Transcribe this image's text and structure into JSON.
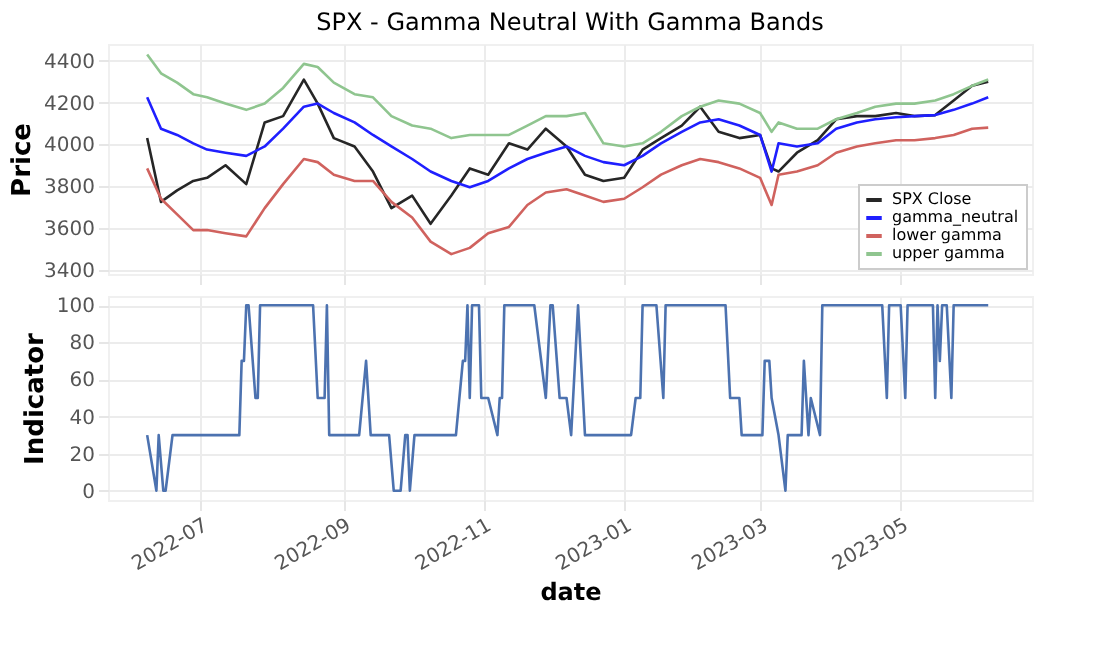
{
  "chart_data": [
    {
      "type": "line",
      "title": "SPX - Gamma Neutral With Gamma Bands",
      "ylabel": "Price",
      "x": [
        "2022-06-08",
        "2022-06-14",
        "2022-06-21",
        "2022-06-28",
        "2022-07-04",
        "2022-07-12",
        "2022-07-21",
        "2022-07-29",
        "2022-08-06",
        "2022-08-15",
        "2022-08-21",
        "2022-08-28",
        "2022-09-06",
        "2022-09-14",
        "2022-09-22",
        "2022-10-01",
        "2022-10-09",
        "2022-10-18",
        "2022-10-26",
        "2022-11-03",
        "2022-11-12",
        "2022-11-20",
        "2022-11-28",
        "2022-12-07",
        "2022-12-15",
        "2022-12-23",
        "2023-01-01",
        "2023-01-09",
        "2023-01-17",
        "2023-01-26",
        "2023-02-03",
        "2023-02-11",
        "2023-02-20",
        "2023-03-01",
        "2023-03-06",
        "2023-03-09",
        "2023-03-17",
        "2023-03-26",
        "2023-04-03",
        "2023-04-12",
        "2023-04-20",
        "2023-04-29",
        "2023-05-07",
        "2023-05-16",
        "2023-05-24",
        "2023-06-01",
        "2023-06-08"
      ],
      "series": [
        {
          "name": "SPX Close",
          "color": "#262626",
          "values": [
            4030,
            3725,
            3780,
            3825,
            3840,
            3900,
            3810,
            4105,
            4135,
            4310,
            4195,
            4030,
            3990,
            3870,
            3695,
            3755,
            3620,
            3755,
            3885,
            3855,
            4005,
            3975,
            4075,
            3990,
            3855,
            3825,
            3840,
            3975,
            4030,
            4090,
            4180,
            4060,
            4030,
            4045,
            3885,
            3870,
            3960,
            4020,
            4120,
            4135,
            4135,
            4150,
            4135,
            4140,
            4210,
            4280,
            4300
          ]
        },
        {
          "name": "gamma_neutral",
          "color": "#1f1fff",
          "values": [
            4225,
            4075,
            4045,
            4005,
            3975,
            3960,
            3945,
            3990,
            4075,
            4180,
            4195,
            4150,
            4105,
            4045,
            3990,
            3930,
            3870,
            3825,
            3795,
            3825,
            3885,
            3930,
            3960,
            3990,
            3945,
            3915,
            3900,
            3945,
            4005,
            4060,
            4105,
            4120,
            4090,
            4045,
            3870,
            4005,
            3990,
            4005,
            4075,
            4105,
            4120,
            4130,
            4135,
            4140,
            4165,
            4195,
            4225
          ]
        },
        {
          "name": "lower gamma",
          "color": "#d0625e",
          "values": [
            3885,
            3740,
            3665,
            3590,
            3590,
            3575,
            3560,
            3695,
            3810,
            3930,
            3915,
            3855,
            3825,
            3825,
            3725,
            3650,
            3535,
            3475,
            3505,
            3575,
            3605,
            3710,
            3770,
            3785,
            3755,
            3725,
            3740,
            3795,
            3855,
            3900,
            3930,
            3915,
            3885,
            3840,
            3710,
            3855,
            3870,
            3900,
            3960,
            3990,
            4005,
            4020,
            4020,
            4030,
            4045,
            4075,
            4080
          ]
        },
        {
          "name": "upper gamma",
          "color": "#8fc58f",
          "values": [
            4430,
            4340,
            4295,
            4240,
            4225,
            4195,
            4165,
            4195,
            4270,
            4385,
            4370,
            4295,
            4240,
            4225,
            4135,
            4090,
            4075,
            4030,
            4045,
            4045,
            4045,
            4090,
            4135,
            4135,
            4150,
            4005,
            3990,
            4005,
            4060,
            4135,
            4180,
            4210,
            4195,
            4150,
            4060,
            4105,
            4075,
            4075,
            4120,
            4150,
            4180,
            4195,
            4195,
            4210,
            4240,
            4280,
            4310
          ]
        }
      ],
      "xlim": [
        "2022-05-22",
        "2023-06-27"
      ],
      "xticks": [
        {
          "value": "2022-07-01",
          "label": null
        },
        {
          "value": "2022-09-01",
          "label": null
        },
        {
          "value": "2022-11-01",
          "label": null
        },
        {
          "value": "2023-01-01",
          "label": null
        },
        {
          "value": "2023-03-01",
          "label": null
        },
        {
          "value": "2023-05-01",
          "label": null
        }
      ],
      "ylim": [
        3380,
        4480
      ],
      "yticks": [
        3400,
        3600,
        3800,
        4000,
        4200,
        4400
      ],
      "grid": true,
      "legend": "bottom right",
      "tick_labels": "y"
    },
    {
      "type": "line",
      "xlabel": "date",
      "ylabel": "Indicator",
      "x": [
        "2022-06-08",
        "2022-06-12",
        "2022-06-13",
        "2022-06-15",
        "2022-06-16",
        "2022-06-19",
        "2022-07-18",
        "2022-07-19",
        "2022-07-20",
        "2022-07-21",
        "2022-07-22",
        "2022-07-25",
        "2022-07-26",
        "2022-07-27",
        "2022-08-19",
        "2022-08-21",
        "2022-08-24",
        "2022-08-25",
        "2022-08-26",
        "2022-09-08",
        "2022-09-11",
        "2022-09-13",
        "2022-09-21",
        "2022-09-23",
        "2022-09-26",
        "2022-09-28",
        "2022-09-29",
        "2022-09-30",
        "2022-10-02",
        "2022-10-20",
        "2022-10-23",
        "2022-10-24",
        "2022-10-25",
        "2022-10-26",
        "2022-10-27",
        "2022-10-30",
        "2022-10-31",
        "2022-11-03",
        "2022-11-07",
        "2022-11-08",
        "2022-11-09",
        "2022-11-10",
        "2022-11-23",
        "2022-11-28",
        "2022-11-30",
        "2022-12-01",
        "2022-12-04",
        "2022-12-07",
        "2022-12-09",
        "2022-12-12",
        "2022-12-15",
        "2023-01-04",
        "2023-01-06",
        "2023-01-08",
        "2023-01-09",
        "2023-01-15",
        "2023-01-18",
        "2023-01-19",
        "2023-02-14",
        "2023-02-16",
        "2023-02-20",
        "2023-02-21",
        "2023-03-02",
        "2023-03-03",
        "2023-03-05",
        "2023-03-06",
        "2023-03-09",
        "2023-03-12",
        "2023-03-13",
        "2023-03-19",
        "2023-03-20",
        "2023-03-22",
        "2023-03-23",
        "2023-03-27",
        "2023-03-28",
        "2023-04-23",
        "2023-04-25",
        "2023-04-26",
        "2023-05-01",
        "2023-05-03",
        "2023-05-04",
        "2023-05-15",
        "2023-05-16",
        "2023-05-17",
        "2023-05-18",
        "2023-05-19",
        "2023-05-21",
        "2023-05-23",
        "2023-05-24",
        "2023-06-08"
      ],
      "values": [
        30,
        0,
        30,
        0,
        0,
        30,
        30,
        70,
        70,
        100,
        100,
        50,
        50,
        100,
        100,
        50,
        50,
        100,
        30,
        30,
        70,
        30,
        30,
        0,
        0,
        30,
        30,
        0,
        30,
        30,
        70,
        70,
        100,
        50,
        100,
        100,
        50,
        50,
        30,
        50,
        50,
        100,
        100,
        50,
        100,
        100,
        50,
        50,
        30,
        100,
        30,
        30,
        50,
        50,
        100,
        100,
        50,
        100,
        100,
        50,
        50,
        30,
        30,
        70,
        70,
        50,
        30,
        0,
        30,
        30,
        70,
        30,
        50,
        30,
        100,
        100,
        50,
        100,
        100,
        50,
        100,
        100,
        50,
        100,
        70,
        100,
        100,
        50,
        100,
        100
      ],
      "color": "#4c72b0",
      "xlim": [
        "2022-05-22",
        "2023-06-27"
      ],
      "xticks": [
        {
          "value": "2022-07-01",
          "label": "2022-07"
        },
        {
          "value": "2022-09-01",
          "label": "2022-09"
        },
        {
          "value": "2022-11-01",
          "label": "2022-11"
        },
        {
          "value": "2023-01-01",
          "label": "2023-01"
        },
        {
          "value": "2023-03-01",
          "label": "2023-03"
        },
        {
          "value": "2023-05-01",
          "label": "2023-05"
        }
      ],
      "ylim": [
        -5,
        105
      ],
      "yticks": [
        0,
        20,
        40,
        60,
        80,
        100
      ],
      "grid": true
    }
  ]
}
